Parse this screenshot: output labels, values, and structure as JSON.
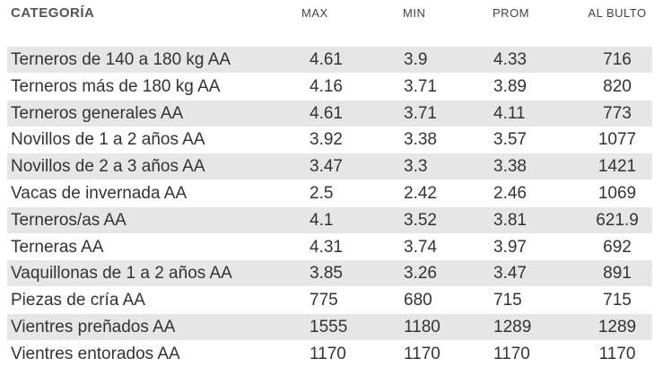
{
  "table": {
    "header": [
      "CATEGORÍA",
      "MAX",
      "MIN",
      "PROM",
      "AL BULTO"
    ],
    "rows": [
      [
        "Terneros de 140 a 180 kg AA",
        "4.61",
        "3.9",
        "4.33",
        "716"
      ],
      [
        "Terneros más de 180 kg AA",
        "4.16",
        "3.71",
        "3.89",
        "820"
      ],
      [
        "Terneros generales AA",
        "4.61",
        "3.71",
        "4.11",
        "773"
      ],
      [
        "Novillos de 1 a 2 años AA",
        "3.92",
        "3.38",
        "3.57",
        "1077"
      ],
      [
        "Novillos de 2 a 3 años AA",
        "3.47",
        "3.3",
        "3.38",
        "1421"
      ],
      [
        "Vacas de invernada AA",
        "2.5",
        "2.42",
        "2.46",
        "1069"
      ],
      [
        "Terneros/as AA",
        "4.1",
        "3.52",
        "3.81",
        "621.9"
      ],
      [
        "Terneras AA",
        "4.31",
        "3.74",
        "3.97",
        "692"
      ],
      [
        "Vaquillonas de 1 a 2 años AA",
        "3.85",
        "3.26",
        "3.47",
        "891"
      ],
      [
        "Piezas de cría AA",
        "775",
        "680",
        "715",
        "715"
      ],
      [
        "Vientres preñados AA",
        "1555",
        "1180",
        "1289",
        "1289"
      ],
      [
        "Vientres entorados AA",
        "1170",
        "1170",
        "1170",
        "1170"
      ]
    ]
  }
}
